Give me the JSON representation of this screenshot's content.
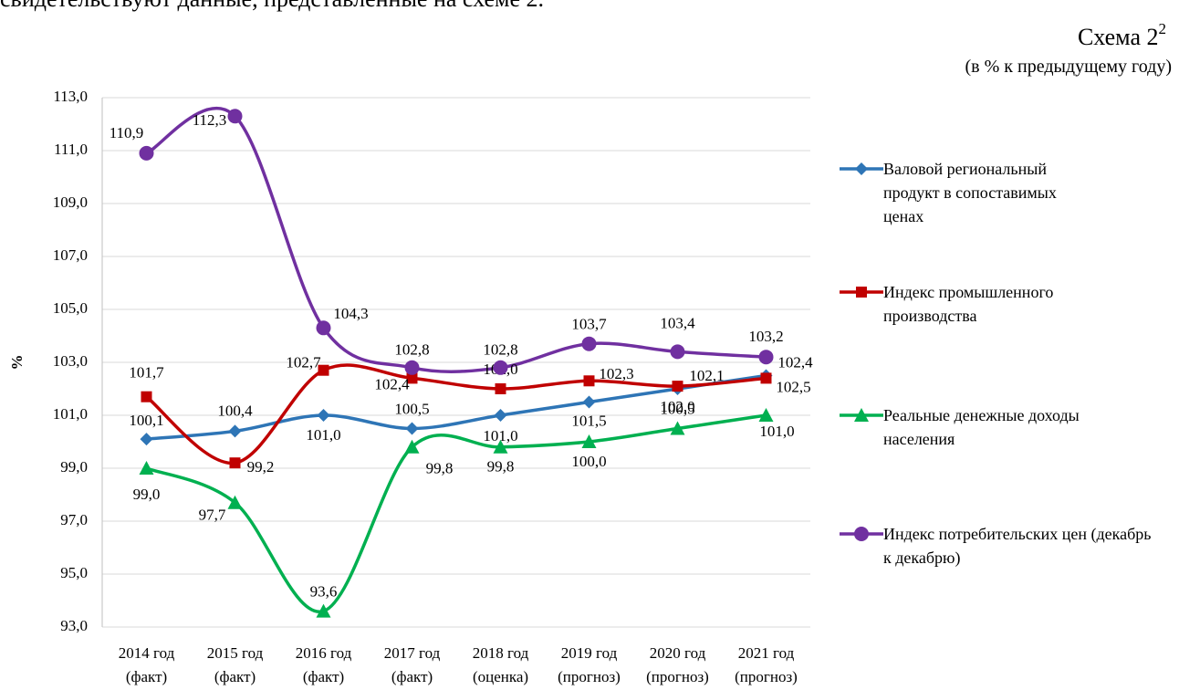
{
  "intro_text": "свидетельствуют данные, представленные на схеме 2.",
  "chart_data": {
    "type": "line",
    "title": "Схема 2",
    "title_footnote": "2",
    "subtitle": "(в % к предыдущему году)",
    "y_label": "%",
    "categories": [
      [
        "2014 год",
        "(факт)"
      ],
      [
        "2015 год",
        "(факт)"
      ],
      [
        "2016 год",
        "(факт)"
      ],
      [
        "2017 год",
        "(факт)"
      ],
      [
        "2018 год",
        "(оценка)"
      ],
      [
        "2019 год",
        "(прогноз)"
      ],
      [
        "2020 год",
        "(прогноз)"
      ],
      [
        "2021 год",
        "(прогноз)"
      ]
    ],
    "ylim": [
      93,
      113
    ],
    "yticks": [
      {
        "value": 93,
        "label": "93,0"
      },
      {
        "value": 95,
        "label": "95,0"
      },
      {
        "value": 97,
        "label": "97,0"
      },
      {
        "value": 99,
        "label": "99,0"
      },
      {
        "value": 101,
        "label": "101,0"
      },
      {
        "value": 103,
        "label": "103,0"
      },
      {
        "value": 105,
        "label": "105,0"
      },
      {
        "value": 107,
        "label": "107,0"
      },
      {
        "value": 109,
        "label": "109,0"
      },
      {
        "value": 111,
        "label": "111,0"
      },
      {
        "value": 113,
        "label": "113,0"
      }
    ],
    "grid": true,
    "legend": "right",
    "series": [
      {
        "name": "Валовой региональный продукт в сопоставимых ценах",
        "color": "#2e75b6",
        "marker": "diamond",
        "values": [
          100.1,
          100.4,
          101.0,
          100.5,
          101.0,
          101.5,
          102.0,
          102.5
        ],
        "value_labels": [
          "100,1",
          "100,4",
          "101,0",
          "100,5",
          "101,0",
          "101,5",
          "102,0",
          "102,5"
        ]
      },
      {
        "name": "Индекс промышленного производства",
        "color": "#c00000",
        "marker": "square",
        "values": [
          101.7,
          99.2,
          102.7,
          102.4,
          102.0,
          102.3,
          102.1,
          102.4
        ],
        "value_labels": [
          "101,7",
          "99,2",
          "102,7",
          "102,4",
          "102,0",
          "102,3",
          "102,1",
          "102,4"
        ]
      },
      {
        "name": "Реальные денежные доходы населения",
        "color": "#00b050",
        "marker": "triangle",
        "values": [
          99.0,
          97.7,
          93.6,
          99.8,
          99.8,
          100.0,
          100.5,
          101.0
        ],
        "value_labels": [
          "99,0",
          "97,7",
          "93,6",
          "99,8",
          "99,8",
          "100,0",
          "100,5",
          "101,0"
        ]
      },
      {
        "name": "Индекс потребительских цен (декабрь к декабрю)",
        "color": "#7030a0",
        "marker": "circle",
        "values": [
          110.9,
          112.3,
          104.3,
          102.8,
          102.8,
          103.7,
          103.4,
          103.2
        ],
        "value_labels": [
          "110,9",
          "112,3",
          "104,3",
          "102,8",
          "102,8",
          "103,7",
          "103,4",
          "103,2"
        ]
      }
    ]
  }
}
